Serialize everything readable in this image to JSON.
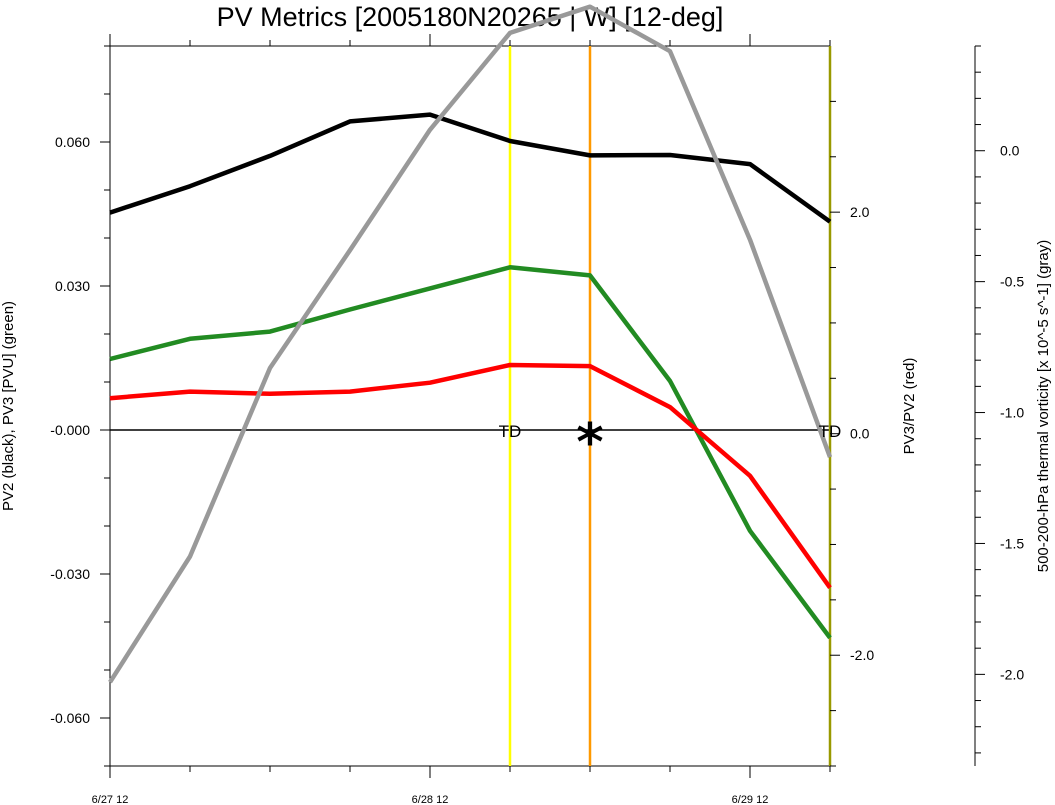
{
  "chart_data": {
    "type": "line",
    "title": "PV Metrics [2005180N20265 | W] [12-deg]",
    "x_ticks": [
      "6/27 12",
      "6/28 12",
      "6/29 12"
    ],
    "x_times_hours": [
      0,
      6,
      12,
      18,
      24,
      30,
      36,
      42,
      48,
      54
    ],
    "left_axis": {
      "label": "PV2 (black), PV3 [PVU] (green)",
      "ylim": [
        -0.07,
        0.08
      ],
      "ticks": [
        "0.060",
        "0.030",
        "-0.000",
        "-0.030",
        "-0.060"
      ]
    },
    "right_axis_red": {
      "label": "PV3/PV2 (red)",
      "ylim": [
        -3.0,
        3.5
      ],
      "ticks": [
        "2.0",
        "0.0",
        "-2.0"
      ]
    },
    "right_axis_gray": {
      "label": "500-200-hPa thermal vorticity [x 10^-5 s^-1] (gray)",
      "ylim": [
        -2.35,
        0.4
      ],
      "ticks": [
        "0.0",
        "-0.5",
        "-1.0",
        "-1.5",
        "-2.0"
      ]
    },
    "series": [
      {
        "color": "#000000",
        "axis": "left",
        "values": [
          0.0453,
          0.0508,
          0.0571,
          0.0643,
          0.0657,
          0.0602,
          0.0572,
          0.0573,
          0.0554,
          0.0434
        ]
      },
      {
        "color": "#228b22",
        "axis": "left",
        "values": [
          0.0148,
          0.019,
          0.0205,
          0.0251,
          0.0295,
          0.0339,
          0.0322,
          0.0102,
          -0.021,
          -0.0433
        ]
      },
      {
        "color": "#ff0000",
        "axis": "right_red",
        "values": [
          0.32,
          0.38,
          0.36,
          0.38,
          0.46,
          0.62,
          0.61,
          0.24,
          -0.38,
          -1.39
        ]
      },
      {
        "color": "#999999",
        "axis": "right_gray",
        "values": [
          -2.03,
          -1.55,
          -0.83,
          -0.38,
          0.08,
          0.45,
          0.55,
          0.38,
          -0.34,
          -1.17
        ]
      }
    ],
    "reference_lines": [
      {
        "x_hours": 30,
        "color": "#ffff00"
      },
      {
        "x_hours": 36,
        "color": "#ff9900"
      },
      {
        "x_hours": 54,
        "color": "#999900"
      }
    ],
    "annotations": [
      {
        "text": "TD",
        "x_hours": 30
      },
      {
        "text": "*",
        "x_hours": 36
      },
      {
        "text": "TD",
        "x_hours": 54
      }
    ],
    "zero_line": true,
    "grid": false
  }
}
